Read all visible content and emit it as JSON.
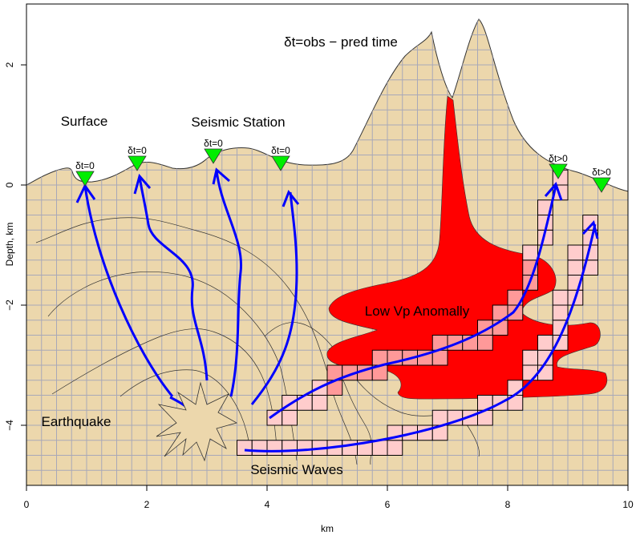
{
  "title": "δt=obs − pred time",
  "labels": {
    "surface": "Surface",
    "station": "Seismic Station",
    "anomaly": "Low Vp Anomally",
    "earthquake": "Earthquake",
    "waves": "Seismic Waves"
  },
  "stations": [
    "δt=0",
    "δt=0",
    "δt=0",
    "δt=0",
    "δt>0",
    "δt>0"
  ],
  "x_axis": {
    "label": "km",
    "ticks": [
      "0",
      "2",
      "4",
      "6",
      "8",
      "10"
    ]
  },
  "y_axis": {
    "label": "Depth, km",
    "ticks": [
      "2",
      "0",
      "−2",
      "−4"
    ]
  },
  "colors": {
    "ground": "#ecd7ac",
    "grid": "#a8a8b8",
    "anomaly": "#ff0000",
    "ray_cell_in": "#ff9999",
    "ray_cell_out": "#ffcccc",
    "ray": "#0000ff",
    "station": "#00ee00"
  }
}
